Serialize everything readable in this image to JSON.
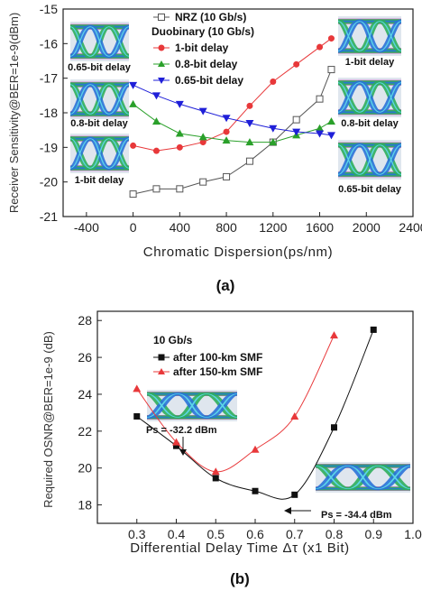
{
  "chart_data": [
    {
      "type": "line",
      "panel_label": "(a)",
      "xlabel": "Chromatic Dispersion(ps/nm)",
      "ylabel": "Receiver Sensitivity@BER=1e-9(dBm)",
      "xlim": [
        -600,
        2400
      ],
      "ylim": [
        -21,
        -15
      ],
      "xticks": [
        -400,
        0,
        400,
        800,
        1200,
        1600,
        2000,
        2400
      ],
      "yticks": [
        -21,
        -20,
        -19,
        -18,
        -17,
        -16,
        -15
      ],
      "legend_title": "Duobinary (10 Gb/s)",
      "legend_placement": "top-center",
      "series": [
        {
          "name": "NRZ (10 Gb/s)",
          "marker": "square-open",
          "color": "#555555",
          "x": [
            0,
            200,
            400,
            600,
            800,
            1000,
            1200,
            1400,
            1600,
            1700
          ],
          "y": [
            -20.35,
            -20.2,
            -20.2,
            -20.0,
            -19.85,
            -19.4,
            -18.85,
            -18.2,
            -17.6,
            -16.75
          ]
        },
        {
          "name": "1-bit delay",
          "marker": "circle",
          "color": "#e8383a",
          "x": [
            0,
            200,
            400,
            600,
            800,
            1000,
            1200,
            1400,
            1600,
            1700
          ],
          "y": [
            -18.95,
            -19.1,
            -19.0,
            -18.85,
            -18.55,
            -17.8,
            -17.1,
            -16.6,
            -16.1,
            -15.85
          ]
        },
        {
          "name": "0.8-bit delay",
          "marker": "triangle-up",
          "color": "#2aa02a",
          "x": [
            0,
            200,
            400,
            600,
            800,
            1000,
            1200,
            1400,
            1600,
            1700
          ],
          "y": [
            -17.75,
            -18.25,
            -18.6,
            -18.7,
            -18.8,
            -18.85,
            -18.85,
            -18.65,
            -18.45,
            -18.25
          ]
        },
        {
          "name": "0.65-bit delay",
          "marker": "triangle-down",
          "color": "#1f1fd8",
          "x": [
            0,
            200,
            400,
            600,
            800,
            1000,
            1200,
            1400,
            1600,
            1700
          ],
          "y": [
            -17.2,
            -17.5,
            -17.75,
            -17.95,
            -18.15,
            -18.3,
            -18.45,
            -18.55,
            -18.6,
            -18.65
          ]
        }
      ],
      "eye_labels": [
        "0.65-bit delay",
        "0.8-bit delay",
        "1-bit delay",
        "1-bit delay",
        "0.8-bit delay",
        "0.65-bit delay"
      ]
    },
    {
      "type": "line",
      "panel_label": "(b)",
      "xlabel": "Differential Delay Time Δτ (x1 Bit)",
      "ylabel": "Required OSNR@BER=1e-9 (dB)",
      "xlim": [
        0.2,
        1.0
      ],
      "ylim": [
        17,
        28.5
      ],
      "xticks": [
        0.3,
        0.4,
        0.5,
        0.6,
        0.7,
        0.8,
        0.9,
        1.0
      ],
      "xtick_labels": [
        "0.3",
        "0.4",
        "0.5",
        "0.6",
        "0.7",
        "0.8",
        "0.9",
        "1.0"
      ],
      "yticks": [
        18,
        20,
        22,
        24,
        26,
        28
      ],
      "legend_title": "10 Gb/s",
      "legend_placement": "top-left",
      "series": [
        {
          "name": "after 100-km SMF",
          "marker": "square",
          "color": "#111111",
          "x": [
            0.3,
            0.4,
            0.5,
            0.6,
            0.7,
            0.8,
            0.9
          ],
          "y": [
            22.8,
            21.2,
            19.45,
            18.75,
            18.55,
            22.2,
            27.5
          ]
        },
        {
          "name": "after 150-km SMF",
          "marker": "triangle-up",
          "color": "#e8383a",
          "x": [
            0.3,
            0.4,
            0.5,
            0.6,
            0.7,
            0.8
          ],
          "y": [
            24.3,
            21.4,
            19.8,
            21.0,
            22.8,
            27.2
          ]
        }
      ],
      "annotations": [
        {
          "text": "Ps = -32.2 dBm",
          "x": 0.5,
          "y": 19.8
        },
        {
          "text": "Ps = -34.4 dBm",
          "x": 0.7,
          "y": 18.55
        }
      ]
    }
  ]
}
